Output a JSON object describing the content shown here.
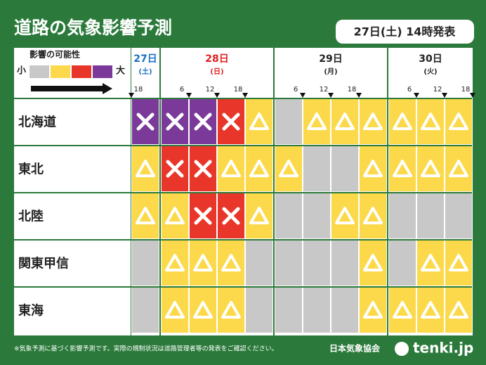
{
  "header": {
    "title": "道路の気象影響予測",
    "issued": "27日(土) 14時発表"
  },
  "legend": {
    "title": "影響の可能性",
    "low": "小",
    "high": "大"
  },
  "level_colors": [
    "#c8c8c8",
    "#fcd94a",
    "#e8372a",
    "#7b3a9a"
  ],
  "days": [
    {
      "date": "27日",
      "weekday": "(土)",
      "color": "#1a6fc4",
      "times": [
        18
      ]
    },
    {
      "date": "28日",
      "weekday": "(日)",
      "color": "#e02020",
      "times": [
        6,
        12,
        18
      ]
    },
    {
      "date": "29日",
      "weekday": "(月)",
      "color": "#222222",
      "times": [
        6,
        12,
        18
      ]
    },
    {
      "date": "30日",
      "weekday": "(火)",
      "color": "#222222",
      "times": [
        6,
        12,
        18
      ]
    }
  ],
  "rows": [
    {
      "region": "北海道",
      "levels": [
        3,
        3,
        3,
        2,
        1,
        0,
        1,
        1,
        1,
        1,
        1,
        1
      ]
    },
    {
      "region": "東北",
      "levels": [
        1,
        2,
        2,
        1,
        1,
        1,
        0,
        0,
        1,
        1,
        1,
        1
      ]
    },
    {
      "region": "北陸",
      "levels": [
        1,
        1,
        2,
        2,
        1,
        0,
        0,
        1,
        1,
        0,
        0,
        0
      ]
    },
    {
      "region": "関東甲信",
      "levels": [
        0,
        1,
        1,
        1,
        0,
        0,
        0,
        0,
        1,
        0,
        1,
        1
      ]
    },
    {
      "region": "東海",
      "levels": [
        0,
        1,
        1,
        1,
        0,
        0,
        0,
        0,
        1,
        1,
        1,
        1
      ]
    }
  ],
  "footer": {
    "note": "※気象予測に基づく影響予測です。実際の規制状況は道路管理者等の発表をご確認ください。",
    "org": "日本気象協会",
    "brand": "tenki.jp"
  }
}
